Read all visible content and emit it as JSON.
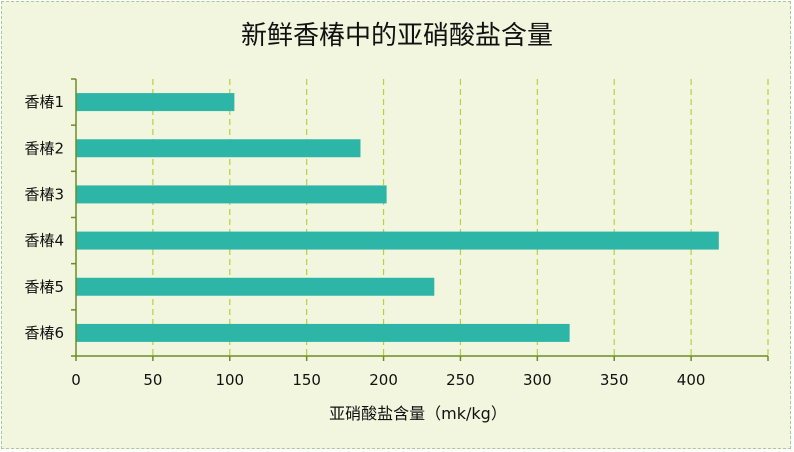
{
  "chart_data": {
    "type": "bar",
    "orientation": "horizontal",
    "title": "新鲜香椿中的亚硝酸盐含量",
    "xlabel": "亚硝酸盐含量（mk/kg）",
    "ylabel": "",
    "categories": [
      "香椿1",
      "香椿2",
      "香椿3",
      "香椿4",
      "香椿5",
      "香椿6"
    ],
    "values": [
      103,
      185,
      202,
      418,
      233,
      321
    ],
    "xlim": [
      0,
      450
    ],
    "xticks": [
      0,
      50,
      100,
      150,
      200,
      250,
      300,
      350,
      400
    ],
    "grid": "vertical-dashed",
    "legend": "none",
    "colors": {
      "bar": "#2db6a8",
      "grid": "#b4d23c",
      "axis": "#6b8e23",
      "background": "#f3f6df"
    }
  }
}
